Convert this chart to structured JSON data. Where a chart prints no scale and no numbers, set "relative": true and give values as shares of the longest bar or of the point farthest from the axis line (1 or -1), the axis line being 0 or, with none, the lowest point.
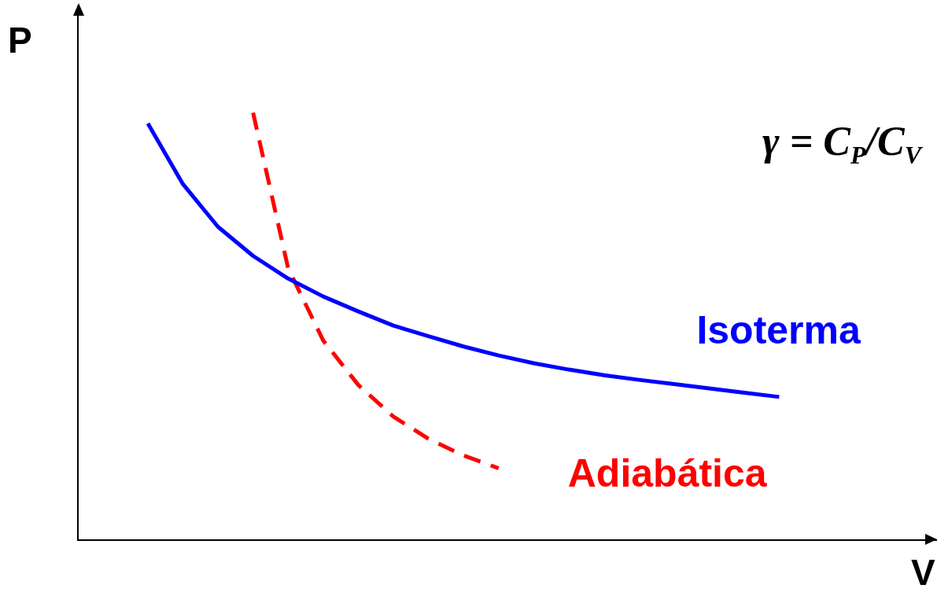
{
  "chart_data": {
    "type": "line",
    "relative": true,
    "xlabel": "V",
    "ylabel": "P",
    "annotations": [
      "γ = C$_{P}$/C$_{V}$"
    ],
    "categories": [
      null,
      null,
      null,
      null,
      null,
      null,
      null,
      null,
      null,
      null,
      null,
      null,
      null,
      null,
      null,
      null,
      null,
      null,
      null
    ],
    "series": [
      {
        "name": "Isoterma",
        "color": "#0000ff",
        "line_style": "solid",
        "values": [
          0.975,
          0.833,
          0.733,
          0.665,
          0.612,
          0.57,
          0.535,
          0.502,
          0.477,
          0.453,
          0.432,
          0.414,
          0.399,
          0.386,
          0.375,
          0.365,
          0.355,
          0.345,
          0.335
        ]
      },
      {
        "name": "Adiabática",
        "color": "#ff0000",
        "line_style": "dashed",
        "values": [
          null,
          null,
          null,
          1,
          0.636,
          0.467,
          0.363,
          0.289,
          0.237,
          0.198,
          0.168,
          null,
          null,
          null,
          null,
          null,
          null,
          null,
          null
        ]
      }
    ]
  }
}
